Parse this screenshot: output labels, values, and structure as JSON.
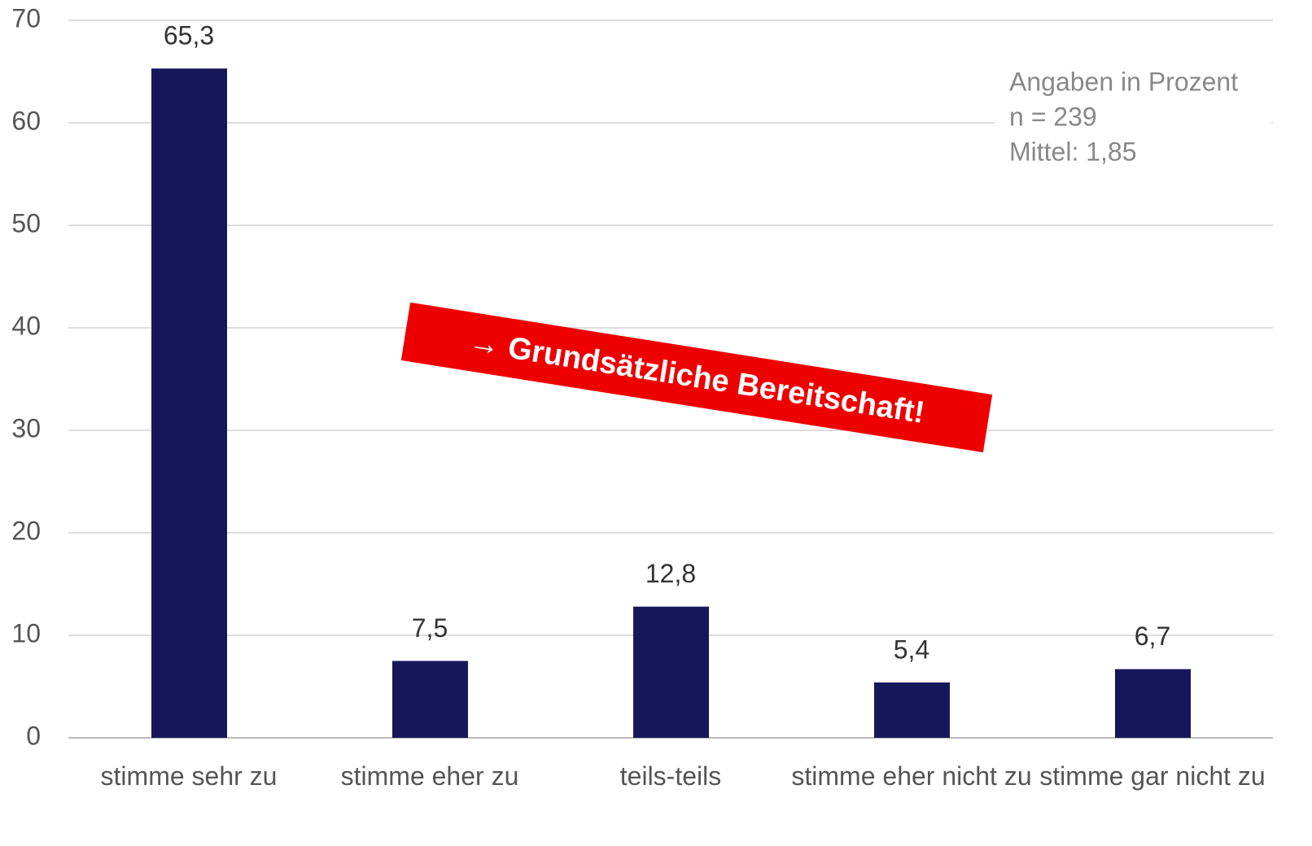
{
  "chart_data": {
    "type": "bar",
    "categories": [
      "stimme sehr zu",
      "stimme eher zu",
      "teils-teils",
      "stimme eher nicht zu",
      "stimme gar nicht zu"
    ],
    "values": [
      65.3,
      7.5,
      12.8,
      5.4,
      6.7
    ],
    "value_labels": [
      "65,3",
      "7,5",
      "12,8",
      "5,4",
      "6,7"
    ],
    "color": "#16175b",
    "ylim": [
      0,
      70
    ],
    "yticks": [
      0,
      10,
      20,
      30,
      40,
      50,
      60,
      70
    ],
    "grid": true,
    "annotations": [
      "Angaben in Prozent",
      "n = 239",
      "Mittel: 1,85"
    ],
    "callout": "→ Grundsätzliche Bereitschaft!",
    "callout_color": "#ee0000"
  }
}
